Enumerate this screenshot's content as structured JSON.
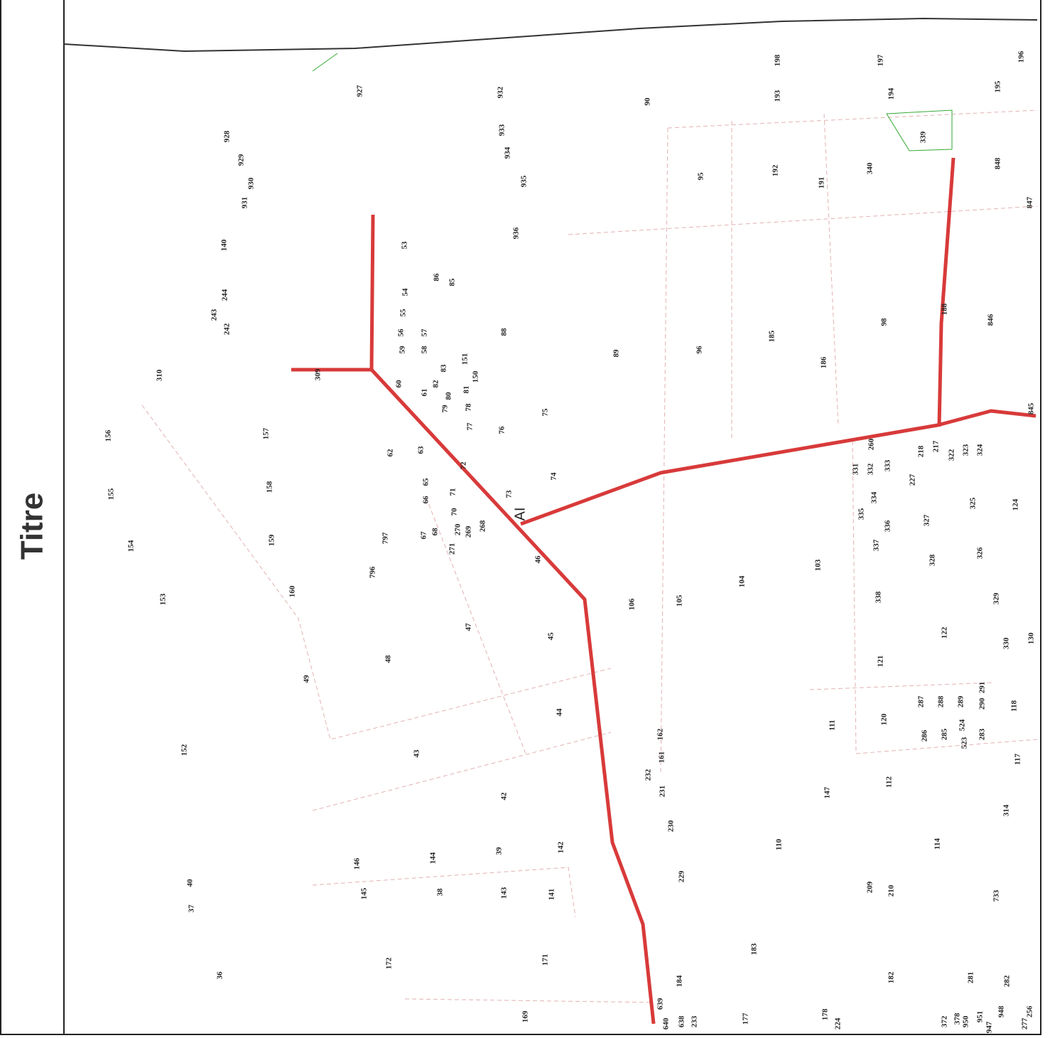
{
  "title": "Titre",
  "road_label": "AI",
  "parcels": [
    "927",
    "932",
    "933",
    "934",
    "935",
    "936",
    "928",
    "929",
    "930",
    "931",
    "140",
    "243",
    "244",
    "242",
    "310",
    "309",
    "53",
    "86",
    "85",
    "54",
    "55",
    "56",
    "57",
    "59",
    "58",
    "88",
    "151",
    "83",
    "82",
    "150",
    "60",
    "61",
    "80",
    "81",
    "79",
    "78",
    "77",
    "76",
    "75",
    "89",
    "90",
    "95",
    "96",
    "185",
    "186",
    "192",
    "191",
    "193",
    "198",
    "197",
    "194",
    "196",
    "195",
    "339",
    "340",
    "848",
    "847",
    "98",
    "188",
    "846",
    "845",
    "156",
    "157",
    "155",
    "158",
    "154",
    "159",
    "153",
    "160",
    "62",
    "63",
    "72",
    "74",
    "65",
    "66",
    "71",
    "73",
    "70",
    "67",
    "68",
    "270",
    "269",
    "268",
    "271",
    "797",
    "796",
    "46",
    "47",
    "48",
    "49",
    "45",
    "44",
    "43",
    "42",
    "106",
    "105",
    "104",
    "103",
    "260",
    "218",
    "217",
    "322",
    "323",
    "324",
    "331",
    "332",
    "333",
    "227",
    "334",
    "335",
    "336",
    "337",
    "325",
    "124",
    "327",
    "328",
    "326",
    "338",
    "329",
    "122",
    "330",
    "130",
    "121",
    "287",
    "288",
    "289",
    "291",
    "290",
    "118",
    "111",
    "120",
    "286",
    "285",
    "524",
    "523",
    "283",
    "117",
    "162",
    "161",
    "232",
    "231",
    "152",
    "112",
    "147",
    "230",
    "314",
    "110",
    "114",
    "39",
    "142",
    "144",
    "146",
    "40",
    "229",
    "145",
    "38",
    "143",
    "141",
    "209",
    "210",
    "733",
    "37",
    "183",
    "36",
    "172",
    "171",
    "184",
    "182",
    "281",
    "282",
    "639",
    "640",
    "638",
    "233",
    "169",
    "177",
    "178",
    "224",
    "372",
    "378",
    "950",
    "951",
    "947",
    "948",
    "256",
    "277"
  ]
}
